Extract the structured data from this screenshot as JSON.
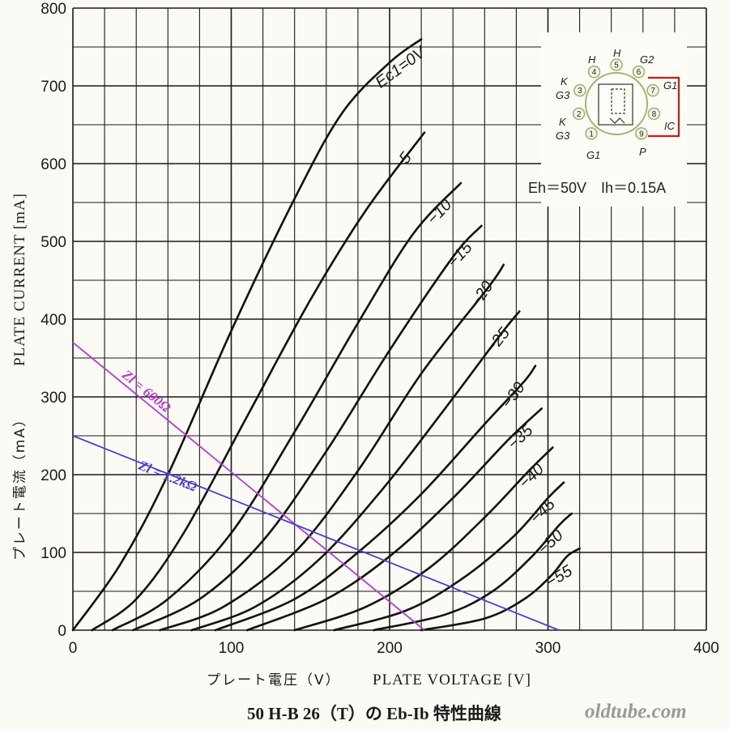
{
  "chart_data": {
    "type": "line",
    "xlabel": "PLATE VOLTAGE [V]",
    "xlabel_jp": "プレート電圧（V）",
    "ylabel": "PLATE CURRENT [mA]",
    "ylabel_jp": "プレート電流（mA）",
    "caption": "50 H-B 26（T）の Eb-Ib 特性曲線",
    "xlim": [
      0,
      400
    ],
    "ylim": [
      0,
      800
    ],
    "x_ticks": [
      0,
      100,
      200,
      300,
      400
    ],
    "y_ticks": [
      0,
      100,
      200,
      300,
      400,
      500,
      600,
      700,
      800
    ],
    "grid": true,
    "series": [
      {
        "name": "Ec1=0V",
        "label": "Ec1=0V",
        "x": [
          0,
          30,
          60,
          100,
          140,
          170,
          200,
          220
        ],
        "y": [
          0,
          85,
          200,
          385,
          555,
          665,
          730,
          760
        ]
      },
      {
        "name": "-5",
        "label": "−5",
        "x": [
          12,
          40,
          70,
          110,
          150,
          185,
          222
        ],
        "y": [
          0,
          40,
          125,
          275,
          425,
          540,
          640
        ]
      },
      {
        "name": "-10",
        "label": "−10",
        "x": [
          25,
          60,
          100,
          140,
          180,
          215,
          245
        ],
        "y": [
          0,
          40,
          125,
          255,
          395,
          510,
          575
        ]
      },
      {
        "name": "-15",
        "label": "−15",
        "x": [
          38,
          80,
          120,
          160,
          200,
          240,
          258
        ],
        "y": [
          0,
          40,
          115,
          230,
          360,
          480,
          520
        ]
      },
      {
        "name": "-20",
        "label": "−20",
        "x": [
          55,
          95,
          140,
          180,
          220,
          262,
          272
        ],
        "y": [
          0,
          30,
          100,
          205,
          330,
          440,
          470
        ]
      },
      {
        "name": "-25",
        "label": "−25",
        "x": [
          75,
          115,
          155,
          195,
          235,
          270,
          282
        ],
        "y": [
          0,
          30,
          90,
          180,
          285,
          380,
          410
        ]
      },
      {
        "name": "-30",
        "label": "−30",
        "x": [
          90,
          140,
          180,
          220,
          260,
          285,
          292
        ],
        "y": [
          0,
          40,
          100,
          175,
          265,
          320,
          340
        ]
      },
      {
        "name": "-35",
        "label": "−35",
        "x": [
          110,
          160,
          200,
          240,
          275,
          296
        ],
        "y": [
          0,
          40,
          95,
          170,
          245,
          285
        ]
      },
      {
        "name": "-40",
        "label": "−40",
        "x": [
          140,
          185,
          225,
          260,
          288,
          303
        ],
        "y": [
          0,
          30,
          80,
          145,
          205,
          235
        ]
      },
      {
        "name": "-45",
        "label": "−45",
        "x": [
          165,
          210,
          245,
          278,
          300,
          310
        ],
        "y": [
          0,
          25,
          65,
          120,
          170,
          190
        ]
      },
      {
        "name": "-50",
        "label": "−50",
        "x": [
          190,
          235,
          265,
          290,
          307,
          315
        ],
        "y": [
          0,
          20,
          50,
          95,
          135,
          150
        ]
      },
      {
        "name": "-55",
        "label": "−55",
        "x": [
          220,
          260,
          285,
          302,
          312,
          320
        ],
        "y": [
          0,
          15,
          40,
          70,
          95,
          105
        ]
      }
    ],
    "load_lines": [
      {
        "label": "Zl = 600Ω",
        "color": "#b43bd8",
        "x": [
          0,
          222
        ],
        "y": [
          370,
          0
        ]
      },
      {
        "label": "Zl = 1.2kΩ",
        "color": "#4a3fd0",
        "x": [
          0,
          307
        ],
        "y": [
          250,
          0
        ]
      }
    ],
    "inset": {
      "heater": "Eh＝50V　Ih＝0.15A",
      "pins": [
        {
          "num": "1",
          "label": ""
        },
        {
          "num": "2",
          "label": "K G3"
        },
        {
          "num": "3",
          "label": "K G3"
        },
        {
          "num": "4",
          "label": "H"
        },
        {
          "num": "5",
          "label": "H"
        },
        {
          "num": "6",
          "label": "G2"
        },
        {
          "num": "7",
          "label": "G1"
        },
        {
          "num": "8",
          "label": "IC"
        },
        {
          "num": "9",
          "label": "P"
        }
      ],
      "pin1_label": "G1"
    }
  },
  "watermark": "oldtube.com",
  "colors": {
    "grid": "#1a1a1a",
    "curve": "#111111",
    "pin_ring": "#9ab870",
    "link": "#d01818"
  }
}
